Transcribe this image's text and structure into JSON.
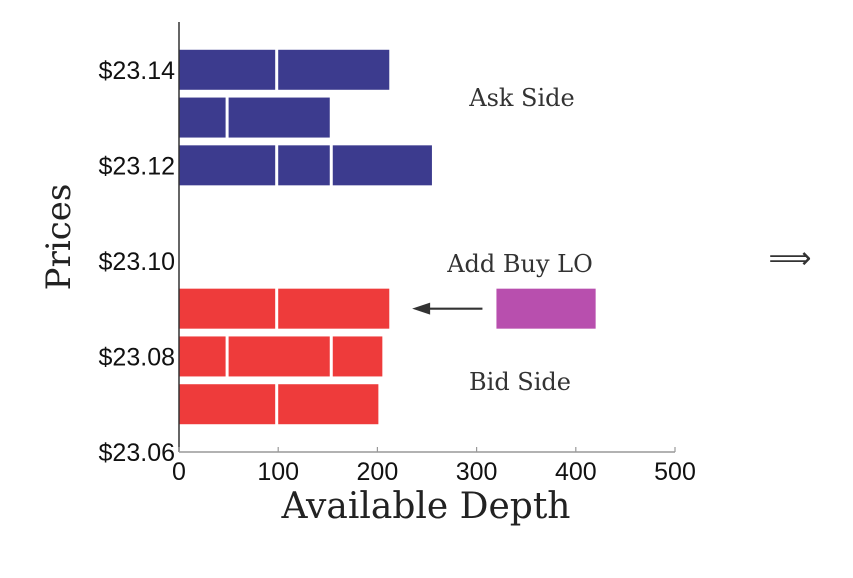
{
  "chart_data": {
    "type": "bar",
    "orientation": "horizontal",
    "stacked": true,
    "xlabel": "Available Depth",
    "ylabel": "Prices",
    "xlim": [
      0,
      500
    ],
    "ylim": [
      23.06,
      23.15
    ],
    "x_ticks": [
      "0",
      "100",
      "200",
      "300",
      "400",
      "500"
    ],
    "y_ticks": [
      "$23.06",
      "$23.08",
      "$23.10",
      "$23.12",
      "$23.14"
    ],
    "grid": false,
    "colors": {
      "ask": "#3c3b8e",
      "bid": "#ee3b3b",
      "new_order": "#b84fae"
    },
    "series": [
      {
        "name": "Ask Side",
        "side": "ask",
        "levels": [
          {
            "price": 23.14,
            "orders": [
              100,
              115
            ]
          },
          {
            "price": 23.13,
            "orders": [
              50,
              105
            ]
          },
          {
            "price": 23.12,
            "orders": [
              100,
              55,
              103
            ]
          }
        ]
      },
      {
        "name": "Bid Side",
        "side": "bid",
        "levels": [
          {
            "price": 23.09,
            "orders": [
              100,
              115
            ]
          },
          {
            "price": 23.08,
            "orders": [
              50,
              105,
              53
            ]
          },
          {
            "price": 23.07,
            "orders": [
              100,
              104
            ]
          }
        ]
      }
    ],
    "incoming_order": {
      "label": "Add Buy LO",
      "price": 23.09,
      "x_range": [
        320,
        420
      ]
    },
    "annotations": [
      "Ask Side",
      "Bid Side"
    ],
    "implies_symbol": "⟹"
  }
}
